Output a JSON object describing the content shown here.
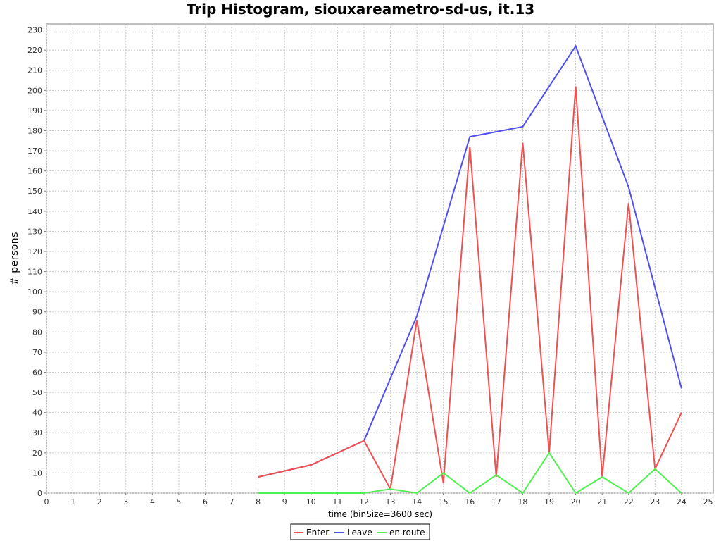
{
  "chart_data": {
    "type": "line",
    "title": "Trip Histogram, siouxareametro-sd-us, it.13",
    "xlabel": "time (binSize=3600 sec)",
    "ylabel": "# persons",
    "xlim": [
      0,
      25
    ],
    "ylim": [
      0,
      230
    ],
    "x_ticks": [
      0,
      1,
      2,
      3,
      4,
      5,
      6,
      7,
      8,
      9,
      10,
      11,
      12,
      13,
      14,
      15,
      16,
      17,
      18,
      19,
      20,
      21,
      22,
      23,
      24,
      25
    ],
    "y_ticks": [
      0,
      10,
      20,
      30,
      40,
      50,
      60,
      70,
      80,
      90,
      100,
      110,
      120,
      130,
      140,
      150,
      160,
      170,
      180,
      190,
      200,
      210,
      220,
      230
    ],
    "grid": true,
    "legend_position": "bottom-center",
    "series": [
      {
        "name": "Enter",
        "color": "#f05050",
        "x": [
          8,
          10,
          12,
          13,
          14,
          15,
          16,
          17,
          18,
          19,
          20,
          21,
          22,
          23,
          24
        ],
        "y": [
          8,
          14,
          26,
          2,
          86,
          5,
          172,
          8,
          174,
          20,
          202,
          8,
          144,
          12,
          40
        ]
      },
      {
        "name": "Leave",
        "color": "#5050f0",
        "x": [
          8,
          10,
          12,
          14,
          16,
          18,
          20,
          22,
          24
        ],
        "y": [
          8,
          14,
          26,
          88,
          177,
          182,
          222,
          152,
          52
        ]
      },
      {
        "name": "en route",
        "color": "#50f050",
        "x": [
          8,
          9,
          10,
          11,
          12,
          13,
          14,
          15,
          16,
          17,
          18,
          19,
          20,
          21,
          22,
          23,
          24
        ],
        "y": [
          0,
          0,
          0,
          0,
          0,
          2,
          0,
          10,
          0,
          9,
          0,
          20,
          0,
          8,
          0,
          12,
          0
        ]
      }
    ]
  }
}
